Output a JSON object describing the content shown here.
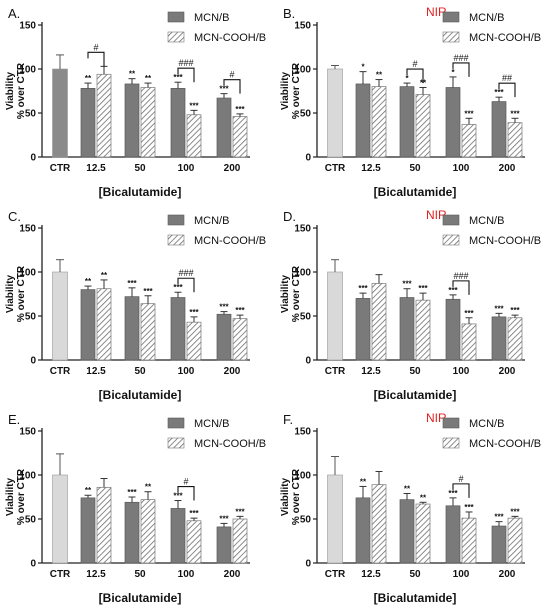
{
  "chart_data": [
    {
      "panel": "A.",
      "nir_label": "",
      "type": "bar",
      "ylabel_line1": "Viability",
      "ylabel_line2": "% over CTR",
      "xlabel": "[Bicalutamide]",
      "ylim": [
        0,
        150
      ],
      "yticks": [
        0,
        50,
        100,
        150
      ],
      "control": {
        "label": "CTR",
        "value": 100,
        "error": 16,
        "color": "#8a8a8a"
      },
      "categories": [
        "12.5",
        "50",
        "100",
        "200"
      ],
      "series": [
        {
          "name": "MCN/B",
          "values": [
            78,
            83,
            78,
            67
          ],
          "errors": [
            6,
            6,
            7,
            5
          ],
          "stars": [
            "**",
            "**",
            "***",
            "***"
          ]
        },
        {
          "name": "MCN-COOH/B",
          "values": [
            94,
            79,
            48,
            46
          ],
          "errors": [
            9,
            5,
            5,
            3
          ],
          "stars": [
            "",
            "**",
            "***",
            "***"
          ]
        }
      ],
      "comparisons": [
        {
          "category": 0,
          "label": "#"
        },
        {
          "category": 2,
          "label": "###"
        },
        {
          "category": 3,
          "label": "#"
        }
      ]
    },
    {
      "panel": "B.",
      "nir_label": "NIR",
      "type": "bar",
      "ylabel_line1": "Viability",
      "ylabel_line2": "% over CTR",
      "xlabel": "[Bicalutamide]",
      "ylim": [
        0,
        150
      ],
      "yticks": [
        0,
        50,
        100,
        150
      ],
      "control": {
        "label": "CTR",
        "value": 100,
        "error": 4,
        "color": "#d9d9d9"
      },
      "categories": [
        "12.5",
        "50",
        "100",
        "200"
      ],
      "series": [
        {
          "name": "MCN/B",
          "values": [
            83,
            80,
            79,
            63
          ],
          "errors": [
            14,
            4,
            12,
            5
          ],
          "stars": [
            "*",
            "*",
            "*",
            "***"
          ]
        },
        {
          "name": "MCN-COOH/B",
          "values": [
            80,
            71,
            37,
            39
          ],
          "errors": [
            8,
            8,
            7,
            5
          ],
          "stars": [
            "**",
            "**",
            "***",
            "***"
          ]
        }
      ],
      "comparisons": [
        {
          "category": 1,
          "label": "#"
        },
        {
          "category": 2,
          "label": "###"
        },
        {
          "category": 3,
          "label": "##"
        }
      ]
    },
    {
      "panel": "C.",
      "nir_label": "",
      "type": "bar",
      "ylabel_line1": "Viability",
      "ylabel_line2": "% over CTR",
      "xlabel": "[Bicalutamide]",
      "ylim": [
        0,
        150
      ],
      "yticks": [
        0,
        50,
        100,
        150
      ],
      "control": {
        "label": "CTR",
        "value": 100,
        "error": 14,
        "color": "#d9d9d9"
      },
      "categories": [
        "12.5",
        "50",
        "100",
        "200"
      ],
      "series": [
        {
          "name": "MCN/B",
          "values": [
            80,
            72,
            71,
            52
          ],
          "errors": [
            4,
            10,
            6,
            3
          ],
          "stars": [
            "**",
            "***",
            "***",
            "***"
          ]
        },
        {
          "name": "MCN-COOH/B",
          "values": [
            81,
            64,
            43,
            47
          ],
          "errors": [
            10,
            9,
            6,
            4
          ],
          "stars": [
            "**",
            "***",
            "***",
            "***"
          ]
        }
      ],
      "comparisons": [
        {
          "category": 2,
          "label": "###"
        }
      ]
    },
    {
      "panel": "D.",
      "nir_label": "NIR",
      "type": "bar",
      "ylabel_line1": "Viability",
      "ylabel_line2": "% over CTR",
      "xlabel": "[Bicalutamide]",
      "ylim": [
        0,
        150
      ],
      "yticks": [
        0,
        50,
        100,
        150
      ],
      "control": {
        "label": "CTR",
        "value": 100,
        "error": 14,
        "color": "#d9d9d9"
      },
      "categories": [
        "12.5",
        "50",
        "100",
        "200"
      ],
      "series": [
        {
          "name": "MCN/B",
          "values": [
            70,
            71,
            69,
            49
          ],
          "errors": [
            6,
            10,
            5,
            4
          ],
          "stars": [
            "***",
            "***",
            "***",
            "***"
          ]
        },
        {
          "name": "MCN-COOH/B",
          "values": [
            87,
            68,
            41,
            48
          ],
          "errors": [
            10,
            8,
            7,
            3
          ],
          "stars": [
            "",
            "***",
            "***",
            "***"
          ]
        }
      ],
      "comparisons": [
        {
          "category": 2,
          "label": "###"
        }
      ]
    },
    {
      "panel": "E.",
      "nir_label": "",
      "type": "bar",
      "ylabel_line1": "Viability",
      "ylabel_line2": "% over CTR",
      "xlabel": "[Bicalutamide]",
      "ylim": [
        0,
        150
      ],
      "yticks": [
        0,
        50,
        100,
        150
      ],
      "control": {
        "label": "CTR",
        "value": 100,
        "error": 24,
        "color": "#d9d9d9"
      },
      "categories": [
        "12.5",
        "50",
        "100",
        "200"
      ],
      "series": [
        {
          "name": "MCN/B",
          "values": [
            74,
            69,
            62,
            41
          ],
          "errors": [
            3,
            6,
            9,
            4
          ],
          "stars": [
            "**",
            "***",
            "***",
            "***"
          ]
        },
        {
          "name": "MCN-COOH/B",
          "values": [
            86,
            72,
            48,
            50
          ],
          "errors": [
            10,
            9,
            3,
            3
          ],
          "stars": [
            "",
            "**",
            "***",
            "***"
          ]
        }
      ],
      "comparisons": [
        {
          "category": 2,
          "label": "#"
        }
      ]
    },
    {
      "panel": "F.",
      "nir_label": "NIR",
      "type": "bar",
      "ylabel_line1": "Viability",
      "ylabel_line2": "% over CTR",
      "xlabel": "[Bicalutamide]",
      "ylim": [
        0,
        150
      ],
      "yticks": [
        0,
        50,
        100,
        150
      ],
      "control": {
        "label": "CTR",
        "value": 100,
        "error": 21,
        "color": "#d9d9d9"
      },
      "categories": [
        "12.5",
        "50",
        "100",
        "200"
      ],
      "series": [
        {
          "name": "MCN/B",
          "values": [
            74,
            72,
            65,
            42
          ],
          "errors": [
            13,
            7,
            9,
            5
          ],
          "stars": [
            "**",
            "**",
            "***",
            "***"
          ]
        },
        {
          "name": "MCN-COOH/B",
          "values": [
            89,
            67,
            51,
            51
          ],
          "errors": [
            15,
            2,
            7,
            2
          ],
          "stars": [
            "",
            "**",
            "***",
            "***"
          ]
        }
      ],
      "comparisons": [
        {
          "category": 2,
          "label": "#"
        }
      ]
    }
  ],
  "colors": {
    "bar_dark": "#7a7a7a",
    "hatch_fill": "#ffffff",
    "hatch_line": "#6e6e6e",
    "nir": "#e02020",
    "axis": "#222222"
  }
}
